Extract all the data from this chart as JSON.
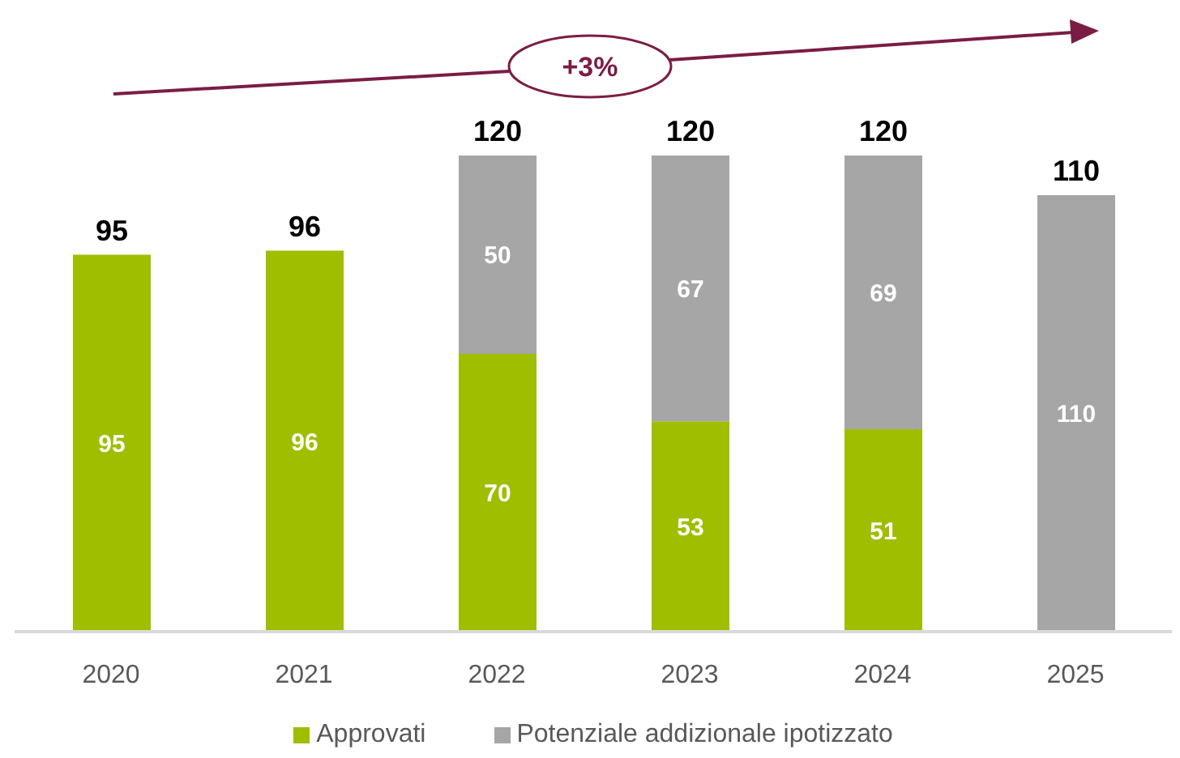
{
  "chart_data": {
    "type": "bar",
    "stacked": true,
    "categories": [
      "2020",
      "2021",
      "2022",
      "2023",
      "2024",
      "2025"
    ],
    "series": [
      {
        "name": "Approvati",
        "color": "#9fbe00",
        "values": [
          95,
          96,
          70,
          53,
          51,
          null
        ]
      },
      {
        "name": "Potenziale addizionale ipotizzato",
        "color": "#a6a6a6",
        "values": [
          null,
          null,
          50,
          67,
          69,
          110
        ]
      }
    ],
    "data_labels": true,
    "totals": [
      "95",
      "96",
      "120",
      "120",
      "120",
      "110"
    ],
    "annotations": [
      "+3%"
    ],
    "legend": "bottom"
  }
}
